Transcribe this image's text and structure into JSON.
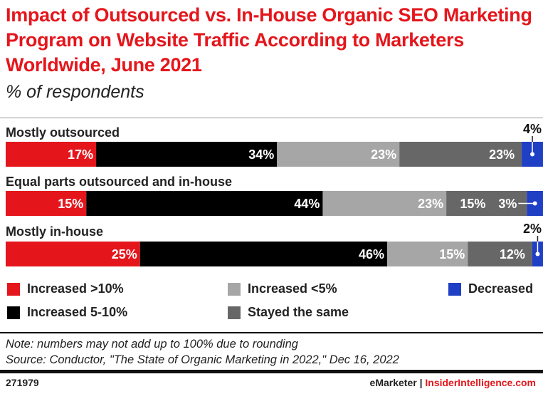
{
  "chart_data": {
    "type": "bar",
    "orientation": "horizontal-stacked",
    "title": "Impact of Outsourced vs. In-House Organic SEO Marketing Program on Website Traffic According to Marketers Worldwide, June 2021",
    "subtitle": "% of respondents",
    "categories": [
      "Mostly outsourced",
      "Equal parts outsourced and in-house",
      "Mostly in-house"
    ],
    "series": [
      {
        "name": "Increased >10%",
        "color": "#e4161c",
        "values": [
          17,
          15,
          25
        ]
      },
      {
        "name": "Increased 5-10%",
        "color": "#000000",
        "values": [
          34,
          44,
          46
        ]
      },
      {
        "name": "Increased <5%",
        "color": "#a6a6a6",
        "values": [
          23,
          23,
          15
        ]
      },
      {
        "name": "Stayed the same",
        "color": "#676767",
        "values": [
          23,
          15,
          12
        ]
      },
      {
        "name": "Decreased",
        "color": "#1f3fc4",
        "values": [
          4,
          3,
          2
        ]
      }
    ],
    "legend_position": "bottom"
  },
  "footer": {
    "note": "Note: numbers may not add up to 100% due to rounding",
    "source": "Source: Conductor, \"The State of Organic Marketing in 2022,\" Dec 16, 2022",
    "id": "271979",
    "brand_a": "eMarketer",
    "separator": "|",
    "brand_b": "InsiderIntelligence.com"
  }
}
